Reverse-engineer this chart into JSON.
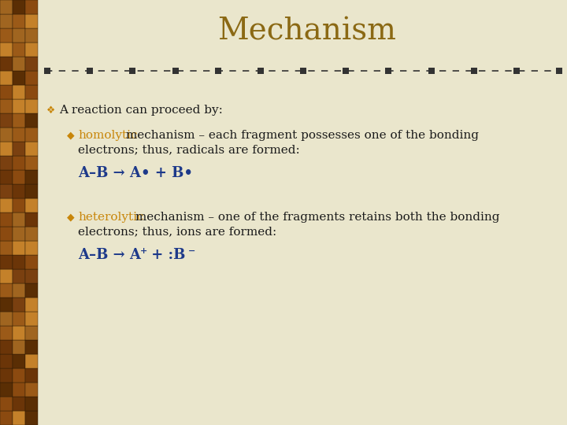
{
  "title": "Mechanism",
  "title_color": "#8B6914",
  "title_fontsize": 28,
  "bg_color": "#EAE6CC",
  "left_bar_width": 48,
  "divider_color": "#333333",
  "bullet_color": "#C8860A",
  "text_color": "#1a1a1a",
  "blue_color": "#1E3A8A",
  "orange_color": "#C8860A",
  "main_bullet_text": "A reaction can proceed by:",
  "item1_label": "homolytic",
  "item1_rest1": " mechanism – each fragment possesses one of the bonding",
  "item1_rest2": "electrons; thus, radicals are formed:",
  "item1_formula": "A–B → A• + B•",
  "item2_label": "heterolytic",
  "item2_rest1": " mechanism – one of the fragments retains both the bonding",
  "item2_rest2": "electrons; thus, ions are formed:",
  "figsize": [
    7.2,
    5.4
  ],
  "dpi": 100
}
